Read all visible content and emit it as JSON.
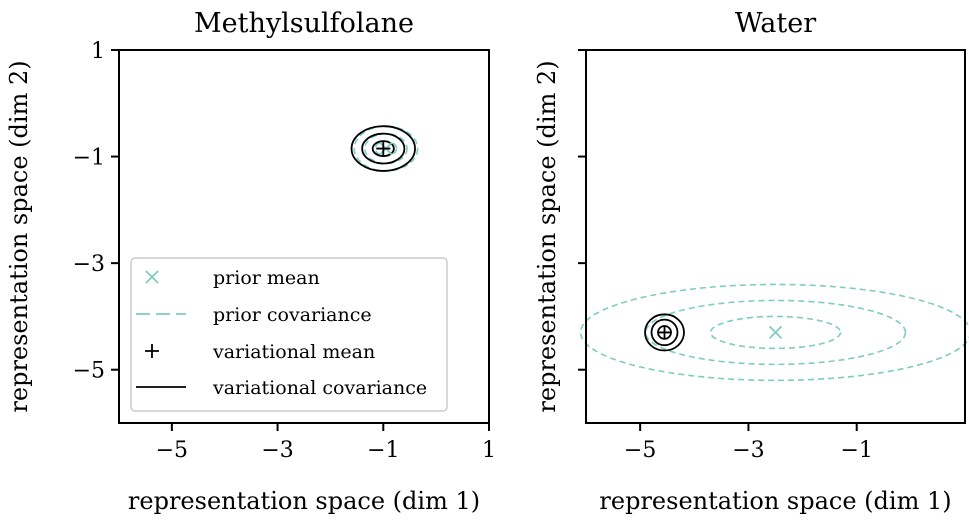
{
  "colors": {
    "prior": "#7fcdbb",
    "variational": "#000000",
    "legend_border": "#cccccc"
  },
  "chart_data": [
    {
      "type": "scatter",
      "title": "Methylsulfolane",
      "xlabel": "representation space (dim 1)",
      "ylabel": "representation space (dim 2)",
      "xlim": [
        -6,
        1
      ],
      "ylim": [
        -6,
        1
      ],
      "xticks": [
        {
          "value": -5,
          "label": "−5"
        },
        {
          "value": -3,
          "label": "−3"
        },
        {
          "value": -1,
          "label": "−1"
        },
        {
          "value": 1,
          "label": "1"
        }
      ],
      "yticks": [
        {
          "value": 1,
          "label": "1"
        },
        {
          "value": -1,
          "label": "−1"
        },
        {
          "value": -3,
          "label": "−3"
        },
        {
          "value": -5,
          "label": "−5"
        }
      ],
      "grid": false,
      "prior_mean": [
        -0.95,
        -0.85
      ],
      "prior_covariance_ellipses": [
        {
          "rx": 0.2,
          "ry": 0.14
        },
        {
          "rx": 0.4,
          "ry": 0.28
        },
        {
          "rx": 0.6,
          "ry": 0.42
        }
      ],
      "variational_mean": [
        -1.0,
        -0.85
      ],
      "variational_covariance_ellipses": [
        {
          "rx": 0.2,
          "ry": 0.14
        },
        {
          "rx": 0.4,
          "ry": 0.28
        },
        {
          "rx": 0.6,
          "ry": 0.42
        }
      ],
      "legend": {
        "placement": "lower-left",
        "entries": [
          {
            "label": "prior mean",
            "marker": "x",
            "series": "prior"
          },
          {
            "label": "prior covariance",
            "marker": "dashed-line",
            "series": "prior"
          },
          {
            "label": "variational mean",
            "marker": "plus",
            "series": "variational"
          },
          {
            "label": "variational covariance",
            "marker": "solid-line",
            "series": "variational"
          }
        ]
      }
    },
    {
      "type": "scatter",
      "title": "Water",
      "xlabel": "representation space (dim 1)",
      "ylabel": "representation space (dim 2)",
      "xlim": [
        -6,
        1
      ],
      "ylim": [
        -6,
        1
      ],
      "xticks": [
        {
          "value": -5,
          "label": "−5"
        },
        {
          "value": -3,
          "label": "−3"
        },
        {
          "value": -1,
          "label": "−1"
        }
      ],
      "yticks": [
        {
          "value": 1,
          "label": ""
        },
        {
          "value": -1,
          "label": ""
        },
        {
          "value": -3,
          "label": ""
        },
        {
          "value": -5,
          "label": ""
        }
      ],
      "grid": false,
      "prior_mean": [
        -2.5,
        -4.3
      ],
      "prior_covariance_ellipses": [
        {
          "rx": 1.2,
          "ry": 0.3
        },
        {
          "rx": 2.4,
          "ry": 0.6
        },
        {
          "rx": 3.6,
          "ry": 0.9
        }
      ],
      "variational_mean": [
        -4.55,
        -4.3
      ],
      "variational_covariance_ellipses": [
        {
          "rx": 0.12,
          "ry": 0.12
        },
        {
          "rx": 0.24,
          "ry": 0.24
        },
        {
          "rx": 0.36,
          "ry": 0.34
        }
      ]
    }
  ]
}
